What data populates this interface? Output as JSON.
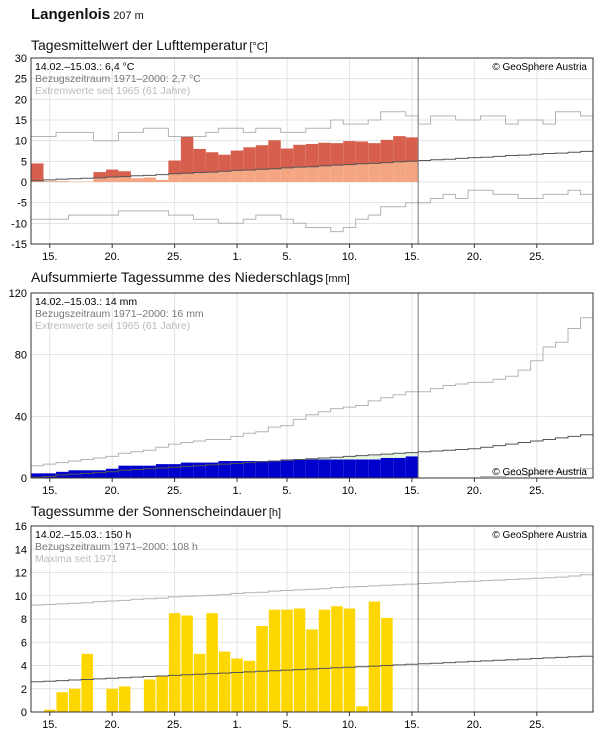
{
  "header": {
    "station": "Langenlois",
    "altitude": "207 m"
  },
  "colors": {
    "warm": "#f4a582",
    "warm_strong": "#d6604d",
    "cold": "#92c5de",
    "precip": "#0000cc",
    "precip_area": "#e5f5e0",
    "sun": "#ffd700",
    "grid": "#e3e3e3",
    "clim_line": "#555555",
    "extreme_line": "#b3b3b3",
    "divider": "#777777"
  },
  "date_ticks": [
    "15.",
    "20.",
    "25.",
    "1.",
    "5.",
    "10.",
    "15.",
    "20.",
    "25."
  ],
  "credit": "© GeoSphere Austria",
  "temperature": {
    "title": "Tagesmittelwert der Lufttemperatur",
    "unit": "[°C]",
    "info": [
      "14.02.–15.03.: 6,4 °C",
      "Bezugszeitraum 1971–2000: 2,7 °C",
      "Extremwerte seit 1965 (61 Jahre)"
    ]
  },
  "precipitation": {
    "title": "Aufsummierte Tagessumme des Niederschlags",
    "unit": "[mm]",
    "info": [
      "14.02.–15.03.: 14 mm",
      "Bezugszeitraum 1971–2000: 16 mm",
      "Extremwerte seit 1965 (61 Jahre)"
    ]
  },
  "sunshine": {
    "title": "Tagessumme der Sonnenscheindauer",
    "unit": "[h]",
    "info": [
      "14.02.–15.03.: 150 h",
      "Bezugszeitraum 1971–2000: 108 h",
      "Maxima seit 1971"
    ]
  },
  "chart_data": [
    {
      "type": "bar",
      "name": "temperature",
      "x_label_ticks": [
        "15.",
        "20.",
        "25.",
        "1.",
        "5.",
        "10.",
        "15.",
        "20.",
        "25."
      ],
      "ylim": [
        -15,
        30
      ],
      "y_ticks": [
        -15,
        -10,
        -5,
        0,
        5,
        10,
        15,
        20,
        25,
        30
      ],
      "grid": true,
      "observed_days": 31,
      "total_days": 45,
      "daily_mean": [
        4.5,
        0.2,
        0.2,
        0.1,
        0.1,
        2.4,
        3.0,
        2.6,
        0.9,
        1.1,
        0.5,
        5.2,
        10.9,
        8.0,
        7.2,
        6.6,
        7.6,
        8.4,
        8.9,
        10.1,
        8.1,
        9.0,
        9.2,
        9.5,
        9.4,
        9.9,
        9.8,
        9.4,
        10.2,
        11.1,
        10.8
      ],
      "clim_mean": [
        0.3,
        0.5,
        0.7,
        0.8,
        0.9,
        1.0,
        1.2,
        1.3,
        1.5,
        1.6,
        1.8,
        2.0,
        2.1,
        2.3,
        2.4,
        2.6,
        2.8,
        2.9,
        3.1,
        3.2,
        3.4,
        3.6,
        3.7,
        3.9,
        4.1,
        4.2,
        4.4,
        4.5,
        4.7,
        4.9,
        5.0,
        5.2,
        5.4,
        5.5,
        5.7,
        5.9,
        6.0,
        6.2,
        6.4,
        6.5,
        6.7,
        6.9,
        7.0,
        7.2,
        7.4
      ],
      "extreme_max": [
        11,
        11,
        12,
        12,
        12,
        10,
        10,
        12,
        12,
        13,
        13,
        11,
        11,
        11,
        12,
        13,
        13,
        12,
        13,
        13,
        12,
        12,
        13,
        13,
        15,
        14,
        14,
        15,
        17,
        17,
        16,
        14,
        16,
        16,
        15,
        15,
        16,
        16,
        14,
        15,
        15,
        14,
        17,
        17,
        16
      ],
      "extreme_min": [
        -9,
        -9,
        -9,
        -8,
        -8,
        -8,
        -8,
        -7,
        -7,
        -7,
        -7,
        -8,
        -8,
        -9,
        -9,
        -10,
        -10,
        -9,
        -8,
        -8,
        -9,
        -10,
        -11,
        -11,
        -12,
        -11,
        -9,
        -8,
        -6,
        -6,
        -5,
        -5,
        -4,
        -3,
        -4,
        -2,
        -2,
        -3,
        -3,
        -4,
        -4,
        -3,
        -3,
        -2,
        -3
      ]
    },
    {
      "type": "area",
      "name": "precipitation",
      "x_label_ticks": [
        "15.",
        "20.",
        "25.",
        "1.",
        "5.",
        "10.",
        "15.",
        "20.",
        "25."
      ],
      "ylim": [
        0,
        120
      ],
      "y_ticks": [
        0,
        40,
        80,
        120
      ],
      "grid": true,
      "observed_days": 31,
      "total_days": 45,
      "cumulative_observed": [
        3,
        3,
        4,
        5,
        5,
        5,
        6,
        8,
        8,
        8,
        9,
        9,
        10,
        10,
        10,
        11,
        11,
        11,
        11,
        11,
        12,
        12,
        12,
        12,
        12,
        12,
        12,
        12,
        13,
        13,
        14
      ],
      "cumulative_clim": [
        0.5,
        1,
        2,
        2.5,
        3,
        3.5,
        4,
        5,
        5.5,
        6,
        6.5,
        7,
        7.5,
        8,
        8.5,
        9,
        9.5,
        10,
        10.5,
        11,
        11.5,
        12,
        12.5,
        13,
        13.5,
        14,
        14.5,
        15,
        15.5,
        16,
        16.5,
        17,
        17.5,
        18,
        18.5,
        19,
        20,
        21,
        22,
        23,
        24,
        25,
        26,
        27,
        28
      ],
      "cumulative_max": [
        8,
        9,
        10,
        11,
        12,
        13,
        14,
        16,
        17,
        18,
        20,
        22,
        23,
        24,
        25,
        25,
        27,
        29,
        30,
        33,
        34,
        38,
        41,
        43,
        45,
        46,
        47,
        50,
        52,
        54,
        56,
        56,
        58,
        60,
        61,
        62,
        62,
        64,
        66,
        70,
        76,
        85,
        88,
        97,
        104
      ],
      "cumulative_min": [
        0,
        0,
        0,
        0,
        0,
        0,
        0,
        0,
        0,
        0,
        0,
        0,
        0,
        0,
        0,
        0,
        0,
        0,
        0,
        0,
        0,
        0,
        0,
        0,
        0,
        0,
        0,
        0,
        0,
        0,
        0,
        0,
        0,
        0,
        0,
        0,
        1,
        1,
        2,
        2,
        3,
        4,
        4,
        5,
        6
      ]
    },
    {
      "type": "bar",
      "name": "sunshine",
      "x_label_ticks": [
        "15.",
        "20.",
        "25.",
        "1.",
        "5.",
        "10.",
        "15.",
        "20.",
        "25."
      ],
      "ylim": [
        0,
        16
      ],
      "y_ticks": [
        0,
        2,
        4,
        6,
        8,
        10,
        12,
        14,
        16
      ],
      "grid": true,
      "observed_days": 31,
      "total_days": 45,
      "daily": [
        0,
        0.2,
        1.7,
        2.0,
        5.0,
        0,
        2.0,
        2.2,
        0,
        2.8,
        3.1,
        8.5,
        8.3,
        5.0,
        8.5,
        5.2,
        4.6,
        4.4,
        7.4,
        8.8,
        8.8,
        8.9,
        7.1,
        8.8,
        9.1,
        8.9,
        0.5,
        9.5,
        8.1,
        0,
        0
      ],
      "clim": [
        2.6,
        2.65,
        2.7,
        2.75,
        2.8,
        2.85,
        2.9,
        2.95,
        3.0,
        3.05,
        3.1,
        3.15,
        3.2,
        3.25,
        3.3,
        3.35,
        3.4,
        3.45,
        3.5,
        3.55,
        3.6,
        3.65,
        3.7,
        3.75,
        3.8,
        3.85,
        3.9,
        3.95,
        4.0,
        4.05,
        4.1,
        4.15,
        4.2,
        4.25,
        4.3,
        4.35,
        4.4,
        4.45,
        4.5,
        4.55,
        4.6,
        4.65,
        4.7,
        4.75,
        4.8
      ],
      "maxima": [
        9.2,
        9.25,
        9.3,
        9.35,
        9.4,
        9.5,
        9.55,
        9.6,
        9.7,
        9.75,
        9.8,
        9.9,
        9.95,
        10.0,
        10.05,
        10.1,
        10.2,
        10.25,
        10.3,
        10.4,
        10.45,
        10.5,
        10.55,
        10.6,
        10.7,
        10.75,
        10.8,
        10.85,
        10.9,
        10.95,
        11.0,
        11.05,
        11.1,
        11.15,
        11.2,
        11.25,
        11.3,
        11.35,
        11.4,
        11.45,
        11.5,
        11.55,
        11.6,
        11.7,
        11.8
      ]
    }
  ]
}
